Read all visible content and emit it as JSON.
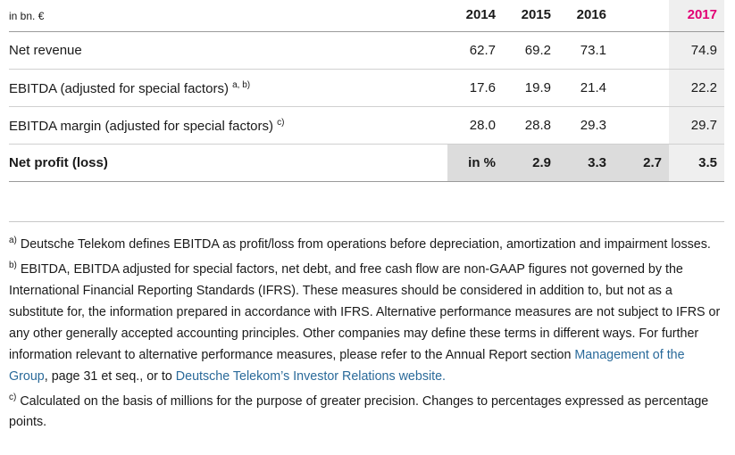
{
  "table": {
    "unit": "in bn. €",
    "years": [
      "2014",
      "2015",
      "2016",
      "2017"
    ],
    "rows": [
      {
        "label": "Net revenue",
        "note": "",
        "values": [
          "62.7",
          "69.2",
          "73.1",
          "74.9"
        ]
      },
      {
        "label": "EBITDA (adjusted for special factors)",
        "note": "a, b)",
        "values": [
          "17.6",
          "19.9",
          "21.4",
          "22.2"
        ]
      },
      {
        "label": "EBITDA margin (adjusted for special factors)",
        "note": "c)",
        "values": [
          "28.0",
          "28.8",
          "29.3",
          "29.7"
        ]
      }
    ],
    "profit": {
      "label": "Net profit (loss)",
      "unit": "in %",
      "values": [
        "2.9",
        "3.3",
        "2.7",
        "3.5"
      ]
    }
  },
  "footnotes": {
    "a": {
      "marker": "a)",
      "text": " Deutsche Telekom defines EBITDA as profit/loss from operations before depreciation, amortization and impairment losses."
    },
    "b": {
      "marker": "b)",
      "text": " EBITDA, EBITDA adjusted for special factors, net debt, and free cash flow are non-GAAP figures not governed by the International Financial Reporting Standards (IFRS). These measures should be considered in addition to, but not as a substitute for, the information prepared in accordance with IFRS. Alternative performance measures are not subject to IFRS or any other generally accepted accounting principles. Other companies may define these terms in different ways. For further information relevant to alternative performance measures, please refer to the Annual Report section ",
      "link1": "Management of the Group",
      "mid": ", page 31 et seq., or to ",
      "link2": "Deutsche Telekom’s Investor Relations website."
    },
    "c": {
      "marker": "c)",
      "text": " Calculated on the basis of millions for the purpose of greater precision. Changes to percentages expressed as percentage points."
    }
  },
  "colors": {
    "accent": "#e20074",
    "link": "#2a6a9a",
    "shade_light": "#efefef",
    "shade_dark": "#dcdcdc"
  }
}
